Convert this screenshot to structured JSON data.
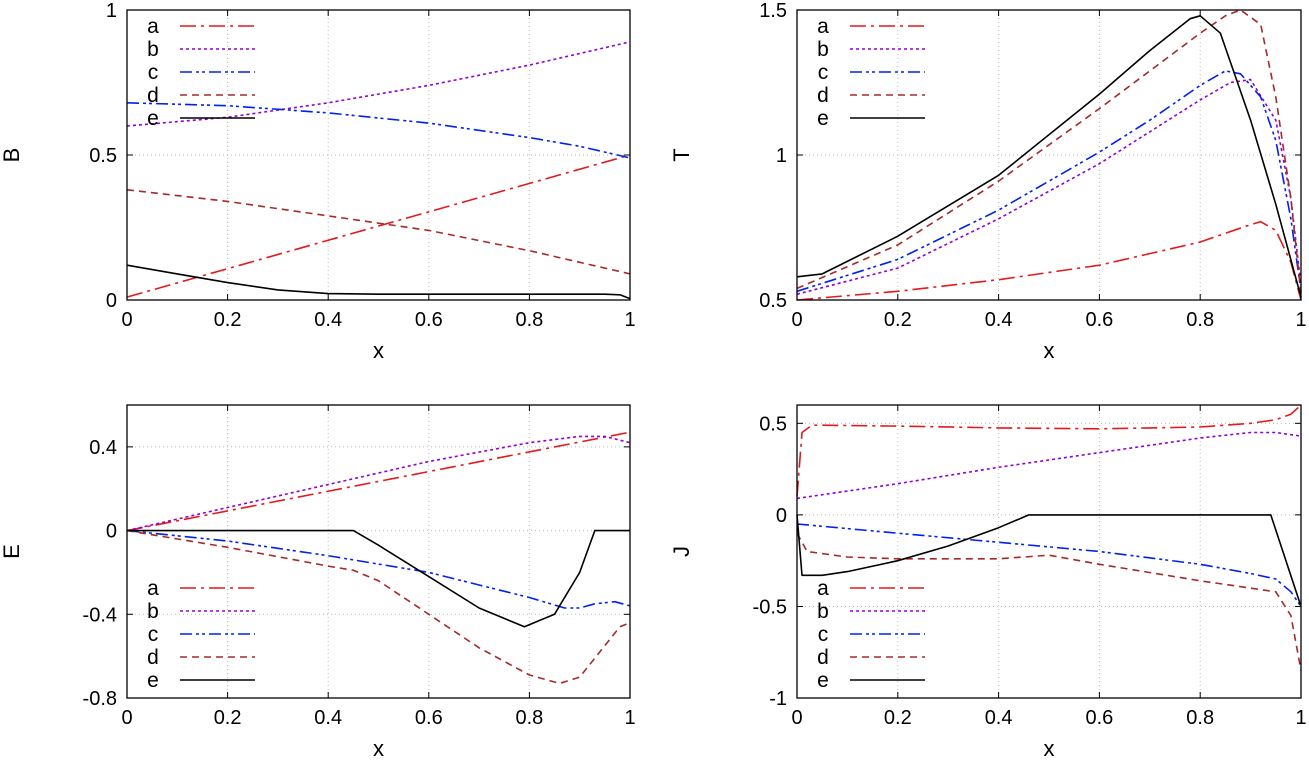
{
  "colors": {
    "a": "#e41a1c",
    "b": "#9400d3",
    "c": "#0022ee",
    "d": "#a52a2a",
    "e": "#000000"
  },
  "chart_data": [
    {
      "id": "B",
      "type": "line",
      "ylabel": "B",
      "xlabel": "x",
      "xlim": [
        0,
        1
      ],
      "ylim": [
        0,
        1
      ],
      "xticks": [
        "0",
        "0.2",
        "0.4",
        "0.6",
        "0.8",
        "1"
      ],
      "yticks": [
        "0",
        "0.5",
        "1"
      ],
      "legend_position": "top-left",
      "series": [
        {
          "name": "a",
          "x": [
            0,
            1
          ],
          "y": [
            0.01,
            0.5
          ]
        },
        {
          "name": "b",
          "x": [
            0,
            0.2,
            0.4,
            0.6,
            0.8,
            1
          ],
          "y": [
            0.6,
            0.63,
            0.68,
            0.74,
            0.81,
            0.89
          ]
        },
        {
          "name": "c",
          "x": [
            0,
            0.2,
            0.4,
            0.6,
            0.8,
            0.9,
            1
          ],
          "y": [
            0.68,
            0.67,
            0.645,
            0.61,
            0.56,
            0.53,
            0.49
          ]
        },
        {
          "name": "d",
          "x": [
            0,
            0.2,
            0.4,
            0.6,
            0.8,
            1
          ],
          "y": [
            0.38,
            0.34,
            0.29,
            0.24,
            0.17,
            0.09
          ]
        },
        {
          "name": "e",
          "x": [
            0,
            0.1,
            0.2,
            0.3,
            0.4,
            0.5,
            0.95,
            0.98,
            1
          ],
          "y": [
            0.12,
            0.09,
            0.06,
            0.035,
            0.022,
            0.02,
            0.02,
            0.018,
            0.005
          ]
        }
      ]
    },
    {
      "id": "T",
      "type": "line",
      "ylabel": "T",
      "xlabel": "x",
      "xlim": [
        0,
        1
      ],
      "ylim": [
        0.5,
        1.5
      ],
      "xticks": [
        "0",
        "0.2",
        "0.4",
        "0.6",
        "0.8",
        "1"
      ],
      "yticks": [
        "0.5",
        "1",
        "1.5"
      ],
      "legend_position": "top-left",
      "series": [
        {
          "name": "a",
          "x": [
            0,
            0.2,
            0.4,
            0.6,
            0.8,
            0.9,
            0.92,
            0.95,
            0.98,
            1
          ],
          "y": [
            0.5,
            0.53,
            0.57,
            0.62,
            0.7,
            0.76,
            0.77,
            0.74,
            0.63,
            0.5
          ]
        },
        {
          "name": "b",
          "x": [
            0,
            0.2,
            0.4,
            0.6,
            0.7,
            0.8,
            0.86,
            0.9,
            0.95,
            0.98,
            1
          ],
          "y": [
            0.52,
            0.61,
            0.78,
            0.97,
            1.08,
            1.19,
            1.25,
            1.26,
            1.12,
            0.85,
            0.55
          ]
        },
        {
          "name": "c",
          "x": [
            0,
            0.2,
            0.4,
            0.6,
            0.7,
            0.8,
            0.85,
            0.88,
            0.92,
            0.95,
            0.98,
            1
          ],
          "y": [
            0.53,
            0.64,
            0.81,
            1.01,
            1.12,
            1.24,
            1.29,
            1.28,
            1.2,
            1.05,
            0.78,
            0.53
          ]
        },
        {
          "name": "d",
          "x": [
            0,
            0.2,
            0.4,
            0.6,
            0.7,
            0.8,
            0.85,
            0.88,
            0.92,
            0.95,
            0.98,
            1
          ],
          "y": [
            0.54,
            0.69,
            0.91,
            1.16,
            1.29,
            1.42,
            1.48,
            1.5,
            1.45,
            1.2,
            0.85,
            0.52
          ]
        },
        {
          "name": "e",
          "x": [
            0,
            0.05,
            0.2,
            0.4,
            0.6,
            0.7,
            0.78,
            0.8,
            0.84,
            0.9,
            0.95,
            1
          ],
          "y": [
            0.58,
            0.59,
            0.72,
            0.93,
            1.21,
            1.36,
            1.47,
            1.48,
            1.42,
            1.12,
            0.83,
            0.51
          ]
        }
      ]
    },
    {
      "id": "E",
      "type": "line",
      "ylabel": "E",
      "xlabel": "x",
      "xlim": [
        0,
        1
      ],
      "ylim": [
        -0.8,
        0.6
      ],
      "xticks": [
        "0",
        "0.2",
        "0.4",
        "0.6",
        "0.8",
        "1"
      ],
      "yticks": [
        "-0.8",
        "-0.4",
        "0",
        "0.4"
      ],
      "legend_position": "bottom-left",
      "series": [
        {
          "name": "a",
          "x": [
            0,
            1
          ],
          "y": [
            0,
            0.47
          ]
        },
        {
          "name": "b",
          "x": [
            0,
            0.2,
            0.4,
            0.6,
            0.8,
            0.9,
            0.95,
            1
          ],
          "y": [
            0,
            0.11,
            0.22,
            0.33,
            0.42,
            0.45,
            0.45,
            0.42
          ]
        },
        {
          "name": "c",
          "x": [
            0,
            0.2,
            0.4,
            0.5,
            0.6,
            0.7,
            0.8,
            0.87,
            0.9,
            0.93,
            0.97,
            1
          ],
          "y": [
            0,
            -0.05,
            -0.12,
            -0.16,
            -0.2,
            -0.26,
            -0.32,
            -0.37,
            -0.37,
            -0.35,
            -0.34,
            -0.36
          ]
        },
        {
          "name": "d",
          "x": [
            0,
            0.2,
            0.4,
            0.45,
            0.5,
            0.6,
            0.7,
            0.8,
            0.86,
            0.9,
            0.95,
            0.98,
            1
          ],
          "y": [
            0,
            -0.08,
            -0.17,
            -0.19,
            -0.24,
            -0.4,
            -0.56,
            -0.69,
            -0.73,
            -0.7,
            -0.55,
            -0.46,
            -0.44
          ]
        },
        {
          "name": "e",
          "x": [
            0,
            0.45,
            0.5,
            0.6,
            0.7,
            0.79,
            0.85,
            0.9,
            0.93,
            1
          ],
          "y": [
            0,
            0,
            -0.07,
            -0.22,
            -0.37,
            -0.46,
            -0.4,
            -0.2,
            0,
            0
          ]
        }
      ]
    },
    {
      "id": "J",
      "type": "line",
      "ylabel": "J",
      "xlabel": "x",
      "xlim": [
        0,
        1
      ],
      "ylim": [
        -1,
        0.6
      ],
      "xticks": [
        "0",
        "0.2",
        "0.4",
        "0.6",
        "0.8",
        "1"
      ],
      "yticks": [
        "-1",
        "-0.5",
        "0",
        "0.5"
      ],
      "legend_position": "bottom-left",
      "series": [
        {
          "name": "a",
          "x": [
            0,
            0.01,
            0.03,
            0.2,
            0.4,
            0.6,
            0.8,
            0.9,
            0.95,
            0.98,
            1
          ],
          "y": [
            0.1,
            0.45,
            0.49,
            0.485,
            0.475,
            0.47,
            0.48,
            0.5,
            0.52,
            0.55,
            0.6
          ]
        },
        {
          "name": "b",
          "x": [
            0,
            0.2,
            0.4,
            0.6,
            0.8,
            0.9,
            0.95,
            1
          ],
          "y": [
            0.09,
            0.17,
            0.26,
            0.34,
            0.42,
            0.45,
            0.45,
            0.43
          ]
        },
        {
          "name": "c",
          "x": [
            0,
            0.2,
            0.4,
            0.6,
            0.8,
            0.9,
            0.95,
            0.98,
            1
          ],
          "y": [
            -0.05,
            -0.1,
            -0.15,
            -0.2,
            -0.27,
            -0.32,
            -0.35,
            -0.42,
            -0.5
          ]
        },
        {
          "name": "d",
          "x": [
            0,
            0.02,
            0.1,
            0.2,
            0.4,
            0.5,
            0.6,
            0.8,
            0.9,
            0.95,
            0.98,
            1
          ],
          "y": [
            -0.1,
            -0.2,
            -0.23,
            -0.24,
            -0.24,
            -0.22,
            -0.27,
            -0.36,
            -0.4,
            -0.42,
            -0.55,
            -0.85
          ]
        },
        {
          "name": "e",
          "x": [
            0,
            0.01,
            0.05,
            0.1,
            0.2,
            0.3,
            0.4,
            0.46,
            0.94,
            1
          ],
          "y": [
            0,
            -0.33,
            -0.33,
            -0.31,
            -0.25,
            -0.17,
            -0.07,
            0,
            0,
            -0.5
          ]
        }
      ]
    }
  ]
}
